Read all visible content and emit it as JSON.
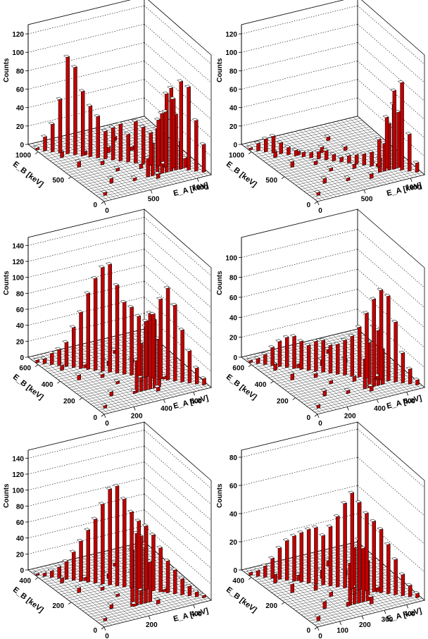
{
  "colors": {
    "bar_face": "#c00000",
    "bar_side": "#ffffff",
    "grid": "#000000",
    "floor": "#ffffff"
  },
  "chart_data": [
    {
      "type": "bar3d",
      "zlabel": "Counts",
      "xlabel": "E_A [keV]",
      "ylabel": "E_B [keV]",
      "zlim": [
        0,
        130
      ],
      "zticks": [
        0,
        20,
        40,
        60,
        80,
        100,
        120
      ],
      "xticks": [
        0,
        500,
        1000
      ],
      "yticks": [
        0,
        500,
        1000
      ],
      "front_x": [
        0,
        50,
        100,
        150,
        200,
        250,
        300,
        350,
        400,
        450,
        500,
        550,
        600,
        650,
        700,
        750,
        800,
        850,
        900,
        950,
        1000,
        1050,
        1100
      ],
      "front_z": [
        2,
        15,
        30,
        58,
        105,
        95,
        70,
        55,
        45,
        30,
        35,
        40,
        30,
        45,
        40,
        35,
        50,
        60,
        75,
        95,
        90,
        55,
        30
      ],
      "back_x": [
        600,
        650,
        700,
        750,
        800,
        850,
        900,
        950,
        1000
      ],
      "back_z": [
        20,
        35,
        50,
        65,
        85,
        90,
        60,
        30,
        10
      ]
    },
    {
      "type": "bar3d",
      "zlabel": "Counts",
      "xlabel": "E_A [keV]",
      "ylabel": "E_B [keV]",
      "zlim": [
        0,
        130
      ],
      "zticks": [
        0,
        20,
        40,
        60,
        80,
        100,
        120
      ],
      "xticks": [
        0,
        500,
        1000
      ],
      "yticks": [
        0,
        500,
        1000
      ],
      "front_x": [
        0,
        50,
        100,
        150,
        200,
        250,
        300,
        350,
        400,
        450,
        500,
        550,
        600,
        650,
        700,
        750,
        800,
        850,
        900,
        950,
        1000,
        1050,
        1100
      ],
      "front_z": [
        2,
        8,
        14,
        18,
        12,
        8,
        6,
        5,
        6,
        8,
        10,
        7,
        5,
        8,
        10,
        12,
        15,
        30,
        55,
        85,
        95,
        40,
        10
      ],
      "back_x": [
        800,
        850,
        900,
        950,
        1000
      ],
      "back_z": [
        15,
        30,
        50,
        70,
        60
      ]
    },
    {
      "type": "bar3d",
      "zlabel": "Counts",
      "xlabel": "E_A [keV]",
      "ylabel": "E_B [keV]",
      "zlim": [
        0,
        150
      ],
      "zticks": [
        0,
        20,
        40,
        60,
        80,
        100,
        120,
        140
      ],
      "xticks": [
        0,
        200,
        400,
        600
      ],
      "yticks": [
        0,
        200,
        400,
        600
      ],
      "front_x": [
        0,
        30,
        60,
        90,
        120,
        150,
        180,
        210,
        240,
        270,
        300,
        330,
        360,
        390,
        420,
        450,
        480,
        510,
        540,
        570,
        600,
        630,
        660,
        690
      ],
      "front_z": [
        3,
        6,
        14,
        20,
        30,
        50,
        70,
        95,
        115,
        130,
        135,
        110,
        90,
        85,
        75,
        70,
        80,
        100,
        115,
        95,
        65,
        40,
        20,
        8
      ],
      "back_x": [
        300,
        330,
        360,
        390,
        420,
        450
      ],
      "back_z": [
        40,
        60,
        80,
        95,
        85,
        60
      ]
    },
    {
      "type": "bar3d",
      "zlabel": "Counts",
      "xlabel": "E_A [keV]",
      "ylabel": "E_B [keV]",
      "zlim": [
        0,
        120
      ],
      "zticks": [
        0,
        20,
        40,
        60,
        80,
        100
      ],
      "xticks": [
        0,
        200,
        400,
        600
      ],
      "yticks": [
        0,
        200,
        400,
        600
      ],
      "front_x": [
        0,
        30,
        60,
        90,
        120,
        150,
        180,
        210,
        240,
        270,
        300,
        330,
        360,
        390,
        420,
        450,
        480,
        510,
        540,
        570,
        600,
        630,
        660,
        690
      ],
      "front_z": [
        2,
        5,
        10,
        18,
        25,
        30,
        32,
        28,
        25,
        30,
        32,
        28,
        30,
        35,
        40,
        50,
        65,
        80,
        90,
        85,
        60,
        30,
        15,
        5
      ],
      "back_x": [
        400,
        430,
        460,
        490,
        520
      ],
      "back_z": [
        30,
        45,
        60,
        55,
        35
      ]
    },
    {
      "type": "bar3d",
      "zlabel": "Counts",
      "xlabel": "E_A [keV]",
      "ylabel": "E_B [keV]",
      "zlim": [
        0,
        150
      ],
      "zticks": [
        0,
        20,
        40,
        60,
        80,
        100,
        120,
        140
      ],
      "xticks": [
        0,
        200,
        400
      ],
      "yticks": [
        0,
        200,
        400
      ],
      "front_x": [
        0,
        20,
        40,
        60,
        80,
        100,
        120,
        140,
        160,
        180,
        200,
        220,
        240,
        260,
        280,
        300,
        320,
        340,
        360,
        380,
        400,
        420,
        440,
        460
      ],
      "front_z": [
        2,
        4,
        8,
        14,
        22,
        35,
        50,
        65,
        80,
        100,
        120,
        125,
        110,
        95,
        85,
        80,
        70,
        55,
        40,
        30,
        20,
        12,
        6,
        3
      ],
      "back_x": [
        180,
        200,
        220,
        240,
        260
      ],
      "back_z": [
        70,
        90,
        85,
        70,
        50
      ]
    },
    {
      "type": "bar3d",
      "zlabel": "Counts",
      "xlabel": "E_A [keV]",
      "ylabel": "E_B [keV]",
      "zlim": [
        0,
        85
      ],
      "zticks": [
        0,
        20,
        40,
        60,
        80
      ],
      "xticks": [
        0,
        100,
        200,
        300,
        400
      ],
      "yticks": [
        0,
        200,
        400
      ],
      "front_x": [
        0,
        20,
        40,
        60,
        80,
        100,
        120,
        140,
        160,
        180,
        200,
        220,
        240,
        260,
        280,
        300,
        320,
        340,
        360,
        380,
        400,
        420,
        440,
        460
      ],
      "front_z": [
        2,
        4,
        8,
        14,
        22,
        28,
        32,
        35,
        38,
        40,
        35,
        42,
        50,
        60,
        68,
        62,
        55,
        50,
        45,
        35,
        25,
        15,
        8,
        3
      ],
      "back_x": [
        200,
        220,
        240,
        260,
        280
      ],
      "back_z": [
        30,
        40,
        45,
        38,
        28
      ]
    }
  ]
}
